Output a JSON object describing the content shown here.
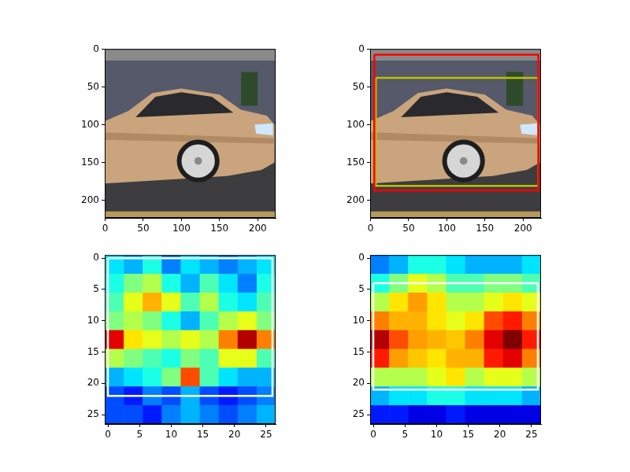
{
  "chart_data": [
    {
      "type": "image",
      "xlim": [
        -0.5,
        223.5
      ],
      "ylim": [
        223.5,
        -0.5
      ],
      "xticks": [
        0,
        50,
        100,
        150,
        200
      ],
      "yticks": [
        0,
        50,
        100,
        150,
        200
      ],
      "grid": false
    },
    {
      "type": "image",
      "xlim": [
        -0.5,
        223.5
      ],
      "ylim": [
        223.5,
        -0.5
      ],
      "xticks": [
        0,
        50,
        100,
        150,
        200
      ],
      "yticks": [
        0,
        50,
        100,
        150,
        200
      ],
      "grid": false,
      "boxes": [
        {
          "x": [
            5,
            220
          ],
          "y": [
            7,
            187
          ],
          "color": "#ff0000"
        },
        {
          "x": [
            7,
            220
          ],
          "y": [
            38,
            181
          ],
          "color": "#bfbf00"
        }
      ]
    },
    {
      "type": "heatmap",
      "xlim": [
        -0.5,
        26.5
      ],
      "ylim": [
        26.5,
        -0.5
      ],
      "xticks": [
        0,
        5,
        10,
        15,
        20,
        25
      ],
      "yticks": [
        0,
        5,
        10,
        15,
        20,
        25
      ],
      "grid": false,
      "x_edges": [
        -0.5,
        2.5,
        5.5,
        8.5,
        11.5,
        14.5,
        17.5,
        20.5,
        23.5,
        26.5
      ],
      "y_edges": [
        -0.5,
        2.5,
        5.5,
        8.5,
        11.5,
        14.5,
        17.5,
        20.5,
        23.5,
        26.5
      ],
      "zlim": [
        0,
        1
      ],
      "cells": [
        [
          0.35,
          0.3,
          0.4,
          0.25,
          0.35,
          0.3,
          0.25,
          0.3,
          0.35
        ],
        [
          0.4,
          0.5,
          0.55,
          0.4,
          0.3,
          0.45,
          0.35,
          0.25,
          0.4
        ],
        [
          0.45,
          0.6,
          0.7,
          0.6,
          0.45,
          0.55,
          0.4,
          0.35,
          0.45
        ],
        [
          0.5,
          0.55,
          0.5,
          0.4,
          0.3,
          0.45,
          0.55,
          0.6,
          0.5
        ],
        [
          0.9,
          0.65,
          0.6,
          0.55,
          0.6,
          0.55,
          0.75,
          0.95,
          0.75
        ],
        [
          0.55,
          0.5,
          0.45,
          0.4,
          0.5,
          0.45,
          0.6,
          0.6,
          0.45
        ],
        [
          0.3,
          0.35,
          0.4,
          0.5,
          0.8,
          0.45,
          0.35,
          0.3,
          0.3
        ],
        [
          0.2,
          0.15,
          0.25,
          0.2,
          0.3,
          0.2,
          0.15,
          0.2,
          0.25
        ],
        [
          0.2,
          0.2,
          0.15,
          0.25,
          0.3,
          0.25,
          0.2,
          0.25,
          0.3
        ]
      ],
      "boxes": [
        {
          "x": [
            0,
            26
          ],
          "y": [
            0,
            22
          ],
          "color": "#ffffff"
        }
      ]
    },
    {
      "type": "heatmap",
      "xlim": [
        -0.5,
        26.5
      ],
      "ylim": [
        26.5,
        -0.5
      ],
      "xticks": [
        0,
        5,
        10,
        15,
        20,
        25
      ],
      "yticks": [
        0,
        5,
        10,
        15,
        20,
        25
      ],
      "grid": false,
      "x_edges": [
        -0.5,
        2.5,
        5.5,
        8.5,
        11.5,
        14.5,
        17.5,
        20.5,
        23.5,
        26.5
      ],
      "y_edges": [
        -0.5,
        2.5,
        5.5,
        8.5,
        11.5,
        14.5,
        17.5,
        20.5,
        23.5,
        26.5
      ],
      "zlim": [
        0,
        1
      ],
      "cells": [
        [
          0.25,
          0.3,
          0.4,
          0.4,
          0.35,
          0.3,
          0.3,
          0.3,
          0.35
        ],
        [
          0.4,
          0.5,
          0.6,
          0.55,
          0.45,
          0.45,
          0.5,
          0.5,
          0.45
        ],
        [
          0.55,
          0.65,
          0.72,
          0.65,
          0.55,
          0.55,
          0.6,
          0.65,
          0.6
        ],
        [
          0.75,
          0.7,
          0.7,
          0.65,
          0.6,
          0.65,
          0.8,
          0.85,
          0.75
        ],
        [
          0.95,
          0.8,
          0.72,
          0.7,
          0.68,
          0.75,
          0.9,
          1.0,
          0.85
        ],
        [
          0.85,
          0.72,
          0.68,
          0.65,
          0.7,
          0.7,
          0.85,
          0.9,
          0.75
        ],
        [
          0.55,
          0.55,
          0.55,
          0.6,
          0.65,
          0.55,
          0.6,
          0.6,
          0.55
        ],
        [
          0.3,
          0.35,
          0.35,
          0.4,
          0.4,
          0.35,
          0.35,
          0.35,
          0.3
        ],
        [
          0.15,
          0.15,
          0.1,
          0.1,
          0.15,
          0.1,
          0.1,
          0.1,
          0.1
        ]
      ],
      "boxes": [
        {
          "x": [
            0,
            26
          ],
          "y": [
            4,
            21
          ],
          "color": "#ffffff"
        }
      ]
    }
  ]
}
